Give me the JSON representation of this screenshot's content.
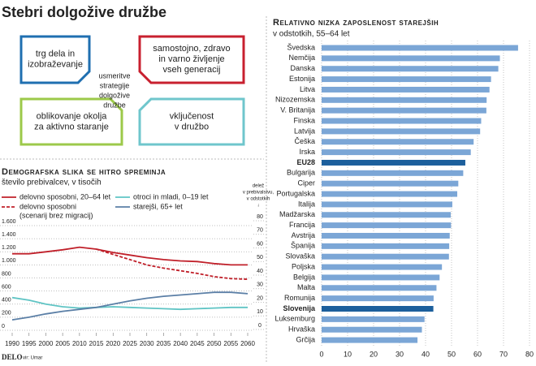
{
  "title": "Stebri dolgožive družbe",
  "diagram": {
    "center": [
      "usmeritve",
      "strategije",
      "dolgožive",
      "družbe"
    ],
    "boxes": [
      {
        "lines": [
          "trg dela in",
          "izobraževanje"
        ],
        "color": "#1f6fb0"
      },
      {
        "lines": [
          "samostojno, zdravo",
          "in varno življenje",
          "vseh generacij"
        ],
        "color": "#c8202f"
      },
      {
        "lines": [
          "oblikovanje okolja",
          "za aktivno staranje"
        ],
        "color": "#9cc94a"
      },
      {
        "lines": [
          "vključenost",
          "v družbo"
        ],
        "color": "#6fc6cc"
      }
    ]
  },
  "chart_data": [
    {
      "type": "line",
      "title": "Demografska slika se hitro spreminja",
      "subtitle": "število prebivalcev, v tisočih",
      "y2_label": [
        "delež",
        "v prebivalstvu,",
        "v odstotkih",
        "↓"
      ],
      "x": [
        1990,
        1995,
        2000,
        2005,
        2010,
        2015,
        2020,
        2025,
        2030,
        2035,
        2040,
        2045,
        2050,
        2055,
        2060
      ],
      "xlim": [
        1990,
        2060
      ],
      "xticks": [
        1990,
        1995,
        2000,
        2005,
        2010,
        2015,
        2020,
        2025,
        2030,
        2035,
        2040,
        2045,
        2050,
        2055,
        2060
      ],
      "ylim": [
        0,
        1600
      ],
      "yticks": [
        0,
        200,
        400,
        600,
        800,
        {
          "value": 1000,
          "label": "1.000"
        },
        {
          "value": 1200,
          "label": "1.200"
        },
        {
          "value": 1400,
          "label": "1.400"
        },
        {
          "value": 1600,
          "label": "1.600"
        }
      ],
      "y2lim": [
        0,
        80
      ],
      "y2ticks": [
        0,
        10,
        20,
        30,
        40,
        50,
        60,
        70,
        80
      ],
      "grid": true,
      "series": [
        {
          "name": "delovno sposobni, 20–64 let",
          "color": "#c0202a",
          "dash": false,
          "values": [
            1170,
            1170,
            1200,
            1230,
            1270,
            1240,
            1190,
            1150,
            1110,
            1080,
            1060,
            1050,
            1020,
            1000,
            1000
          ]
        },
        {
          "name": "delovno sposobni",
          "note": "(scenarij brez migracij)",
          "color": "#c0202a",
          "dash": true,
          "values": [
            null,
            null,
            null,
            null,
            null,
            1240,
            1160,
            1080,
            1000,
            950,
            910,
            870,
            820,
            790,
            780
          ]
        },
        {
          "name": "otroci in mladi, 0–19 let",
          "color": "#5fc4c4",
          "dash": false,
          "values": [
            500,
            460,
            400,
            360,
            340,
            350,
            360,
            350,
            340,
            330,
            320,
            330,
            340,
            350,
            350
          ]
        },
        {
          "name": "starejši, 65+ let",
          "color": "#5b7fa6",
          "dash": false,
          "values": [
            160,
            200,
            250,
            290,
            320,
            350,
            400,
            450,
            490,
            520,
            540,
            560,
            580,
            580,
            560
          ]
        }
      ]
    },
    {
      "type": "hbar",
      "title": "Relativno nizka zaposlenost starejših",
      "subtitle": "v odstotkih, 55–64 let",
      "categories": [
        "Švedska",
        "Nemčija",
        "Danska",
        "Estonija",
        "Litva",
        "Nizozemska",
        "V. Britanija",
        "Finska",
        "Latvija",
        "Češka",
        "Irska",
        "EU28",
        "Bulgarija",
        "Ciper",
        "Portugalska",
        "Italija",
        "Madžarska",
        "Francija",
        "Avstrija",
        "Španija",
        "Slovaška",
        "Poljska",
        "Belgija",
        "Malta",
        "Romunija",
        "Slovenija",
        "Luksemburg",
        "Hrvaška",
        "Grčija"
      ],
      "values": [
        75.6,
        68.6,
        68,
        65.2,
        64.6,
        63.5,
        63.4,
        61.4,
        61,
        58.5,
        57.4,
        55.3,
        54.5,
        52.6,
        52.2,
        50.3,
        49.7,
        49.8,
        49.3,
        49.1,
        49,
        46.3,
        45.4,
        44.2,
        43.1,
        43,
        39.6,
        38.6,
        36.9
      ],
      "color": "#7ba6d6",
      "colors": [
        "#7ba6d6",
        "#7ba6d6",
        "#7ba6d6",
        "#7ba6d6",
        "#7ba6d6",
        "#7ba6d6",
        "#7ba6d6",
        "#7ba6d6",
        "#7ba6d6",
        "#7ba6d6",
        "#7ba6d6",
        "#1c5f9c",
        "#7ba6d6",
        "#7ba6d6",
        "#7ba6d6",
        "#7ba6d6",
        "#7ba6d6",
        "#7ba6d6",
        "#7ba6d6",
        "#7ba6d6",
        "#7ba6d6",
        "#7ba6d6",
        "#7ba6d6",
        "#7ba6d6",
        "#7ba6d6",
        "#1c5f9c",
        "#7ba6d6",
        "#7ba6d6",
        "#7ba6d6"
      ],
      "xlim": [
        0,
        80
      ],
      "xticks": [
        0,
        10,
        20,
        30,
        40,
        50,
        60,
        70,
        80
      ],
      "grid": true
    }
  ],
  "footer": {
    "brand": "DELO",
    "source": "vir: Umar"
  }
}
